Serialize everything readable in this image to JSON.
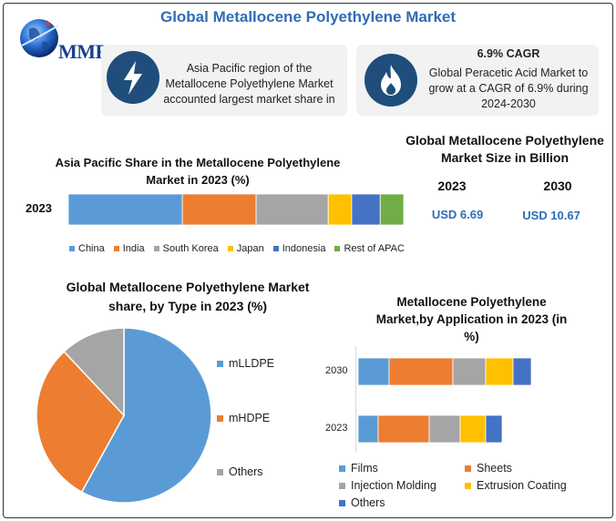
{
  "title": "Global Metallocene Polyethylene Market",
  "logo": {
    "text": "MMR"
  },
  "cards": [
    {
      "icon": "lightning-icon",
      "text": "Asia Pacific region of the Metallocene Polyethylene Market accounted largest market share in"
    },
    {
      "icon": "flame-icon",
      "heading": "6.9% CAGR",
      "text": "Global Peracetic Acid Market to grow at a CAGR of 6.9% during 2024-2030"
    }
  ],
  "size": {
    "title": "Global Metallocene Polyethylene Market Size in Billion",
    "years": [
      "2023",
      "2030"
    ],
    "values": [
      "USD 6.69",
      "USD 10.67"
    ]
  },
  "colors": {
    "blue": "#5b9bd5",
    "orange": "#ed7d31",
    "gray": "#a5a5a5",
    "yellow": "#ffc000",
    "darkblue": "#4472c4",
    "green": "#70ad47"
  },
  "chart_data": [
    {
      "type": "bar",
      "orientation": "horizontal-stacked",
      "title": "Asia Pacific Share in the Metallocene Polyethylene Market in 2023 (%)",
      "categories": [
        "2023"
      ],
      "series": [
        {
          "name": "China",
          "values": [
            34
          ]
        },
        {
          "name": "India",
          "values": [
            22
          ]
        },
        {
          "name": "South Korea",
          "values": [
            21.5
          ]
        },
        {
          "name": "Japan",
          "values": [
            7
          ]
        },
        {
          "name": "Indonesia",
          "values": [
            8.5
          ]
        },
        {
          "name": "Rest of APAC",
          "values": [
            7
          ]
        }
      ],
      "legend": "bottom"
    },
    {
      "type": "pie",
      "title": "Global Metallocene Polyethylene Market share, by Type in 2023  (%)",
      "labels": [
        "mLLDPE",
        "mHDPE",
        "Others"
      ],
      "values": [
        58,
        30,
        12
      ],
      "legend": "right"
    },
    {
      "type": "bar",
      "orientation": "horizontal-stacked",
      "title": "Metallocene Polyethylene Market,by Application in 2023 (in %)",
      "categories": [
        "2030",
        "2023"
      ],
      "series": [
        {
          "name": "Films",
          "values": [
            17,
            11
          ]
        },
        {
          "name": "Sheets",
          "values": [
            35,
            28
          ]
        },
        {
          "name": "Injection Molding",
          "values": [
            18,
            17
          ]
        },
        {
          "name": "Extrusion Coating",
          "values": [
            15,
            14
          ]
        },
        {
          "name": "Others",
          "values": [
            10,
            9
          ]
        }
      ],
      "legend": "bottom"
    }
  ]
}
